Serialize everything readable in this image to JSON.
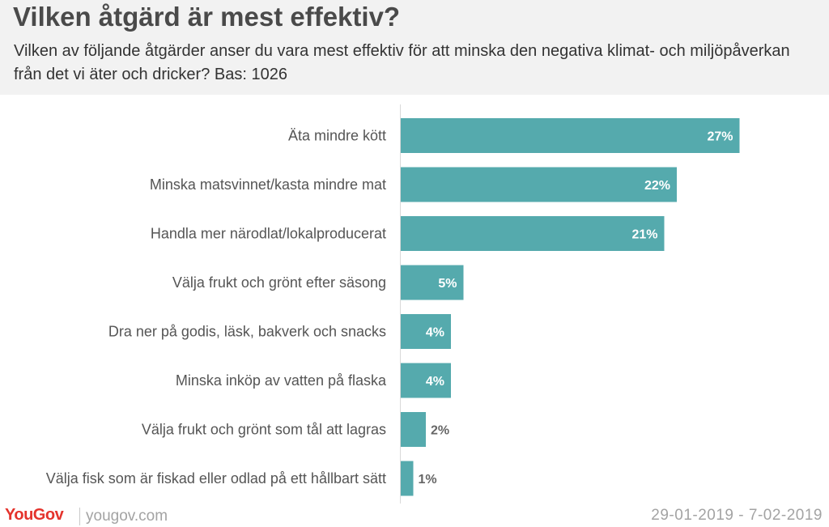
{
  "header": {
    "title": "Vilken åtgärd är mest effektiv?",
    "subtitle": "Vilken av följande åtgärder anser du vara mest effektiv för att minska den negativa klimat- och miljöpåverkan från det vi äter och dricker? Bas: 1026"
  },
  "chart_data": {
    "type": "bar",
    "orientation": "horizontal",
    "categories": [
      "Äta mindre kött",
      "Minska matsvinnet/kasta mindre mat",
      "Handla mer närodlat/lokalproducerat",
      "Välja frukt och grönt efter säsong",
      "Dra ner på godis, läsk, bakverk och snacks",
      "Minska inköp av vatten på flaska",
      "Välja frukt och grönt som tål att lagras",
      "Välja fisk som är fiskad eller odlad på ett hållbart sätt"
    ],
    "values": [
      27,
      22,
      21,
      5,
      4,
      4,
      2,
      1
    ],
    "value_labels": [
      "27%",
      "22%",
      "21%",
      "5%",
      "4%",
      "4%",
      "2%",
      "1%"
    ],
    "xlim": [
      0,
      30
    ],
    "bar_color": "#55aaad",
    "grid": false,
    "legend": "none"
  },
  "footer": {
    "logo_you": "You",
    "logo_gov": "Gov",
    "site": "yougov.com",
    "date_range": "29-01-2019 - 7-02-2019"
  },
  "colors": {
    "brand_red": "#e4332c",
    "bar": "#55aaad",
    "header_bg": "#f2f2f2"
  }
}
